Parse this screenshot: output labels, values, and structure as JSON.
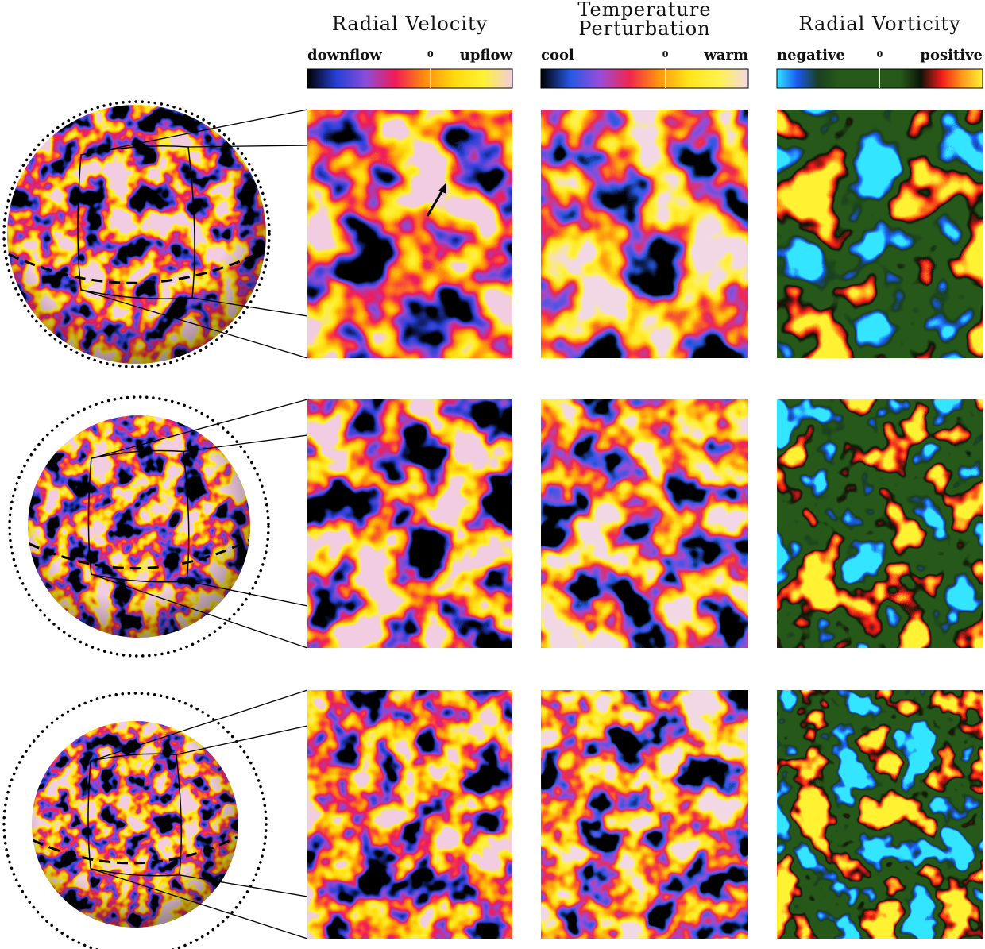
{
  "columns": [
    {
      "title_lines": [
        "Radial Velocity"
      ],
      "labels": {
        "left": "downflow",
        "zero": "0",
        "right": "upflow"
      }
    },
    {
      "title_lines": [
        "Temperature",
        "Perturbation"
      ],
      "labels": {
        "left": "cool",
        "zero": "0",
        "right": "warm"
      }
    },
    {
      "title_lines": [
        "Radial Vorticity"
      ],
      "labels": {
        "left": "negative",
        "zero": "0",
        "right": "positive"
      }
    }
  ]
}
